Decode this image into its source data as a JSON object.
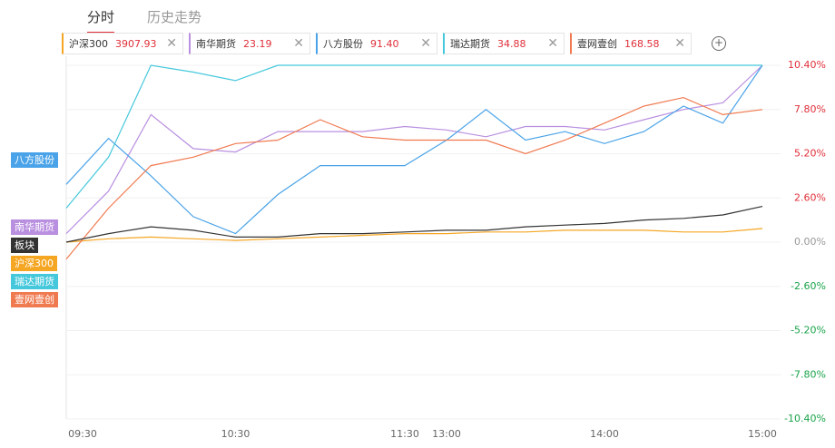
{
  "tabs": [
    "分时",
    "历史走势"
  ],
  "chart_data": {
    "type": "line",
    "categories": [
      "09:30",
      null,
      null,
      null,
      "10:30",
      null,
      null,
      null,
      "11:30",
      "13:00",
      null,
      null,
      null,
      "14:00",
      null,
      null,
      null,
      "15:00"
    ],
    "series": [
      {
        "name": "沪深300",
        "price": "3907.93",
        "color": "#f5a623",
        "values": [
          0,
          0.2,
          0.3,
          0.2,
          0.1,
          0.2,
          0.3,
          0.4,
          0.5,
          0.5,
          0.6,
          0.6,
          0.7,
          0.7,
          0.7,
          0.6,
          0.6,
          0.8
        ]
      },
      {
        "name": "南华期货",
        "price": "23.19",
        "color": "#b98fe0",
        "values": [
          0.5,
          3,
          7.5,
          5.5,
          5.3,
          6.5,
          6.5,
          6.5,
          6.8,
          6.6,
          6.2,
          6.8,
          6.8,
          6.6,
          7.2,
          7.8,
          8.2,
          10.4
        ]
      },
      {
        "name": "八方股份",
        "price": "91.40",
        "color": "#4aa3e8",
        "values": [
          3.4,
          6.1,
          3.9,
          1.5,
          0.5,
          2.8,
          4.5,
          4.5,
          4.5,
          6,
          7.8,
          6,
          6.5,
          5.8,
          6.5,
          8,
          7,
          10.4
        ]
      },
      {
        "name": "瑞达期货",
        "price": "34.88",
        "color": "#45c8dc",
        "values": [
          2,
          5,
          10.4,
          10,
          9.5,
          10.4,
          10.4,
          10.4,
          10.4,
          10.4,
          10.4,
          10.4,
          10.4,
          10.4,
          10.4,
          10.4,
          10.4,
          10.4
        ]
      },
      {
        "name": "壹网壹创",
        "price": "168.58",
        "color": "#f07a50",
        "values": [
          -1,
          2,
          4.5,
          5,
          5.8,
          6,
          7.2,
          6.2,
          6,
          6,
          6,
          5.2,
          6,
          7,
          8,
          8.5,
          7.5,
          7.8
        ]
      },
      {
        "name": "板块",
        "color": "#333333",
        "values": [
          0,
          0.5,
          0.9,
          0.7,
          0.3,
          0.3,
          0.5,
          0.5,
          0.6,
          0.7,
          0.7,
          0.9,
          1.0,
          1.1,
          1.3,
          1.4,
          1.6,
          2.1
        ]
      }
    ],
    "ylim": [
      -10.4,
      10.4
    ],
    "yticks": [
      {
        "value": 10.4,
        "label": "10.40%"
      },
      {
        "value": 7.8,
        "label": "7.80%"
      },
      {
        "value": 5.2,
        "label": "5.20%"
      },
      {
        "value": 2.6,
        "label": "2.60%"
      },
      {
        "value": 0,
        "label": "0.00%"
      },
      {
        "value": -2.6,
        "label": "-2.60%"
      },
      {
        "value": -5.2,
        "label": "-5.20%"
      },
      {
        "value": -7.8,
        "label": "-7.80%"
      },
      {
        "value": -10.4,
        "label": "-10.40%"
      }
    ],
    "grid": true
  }
}
